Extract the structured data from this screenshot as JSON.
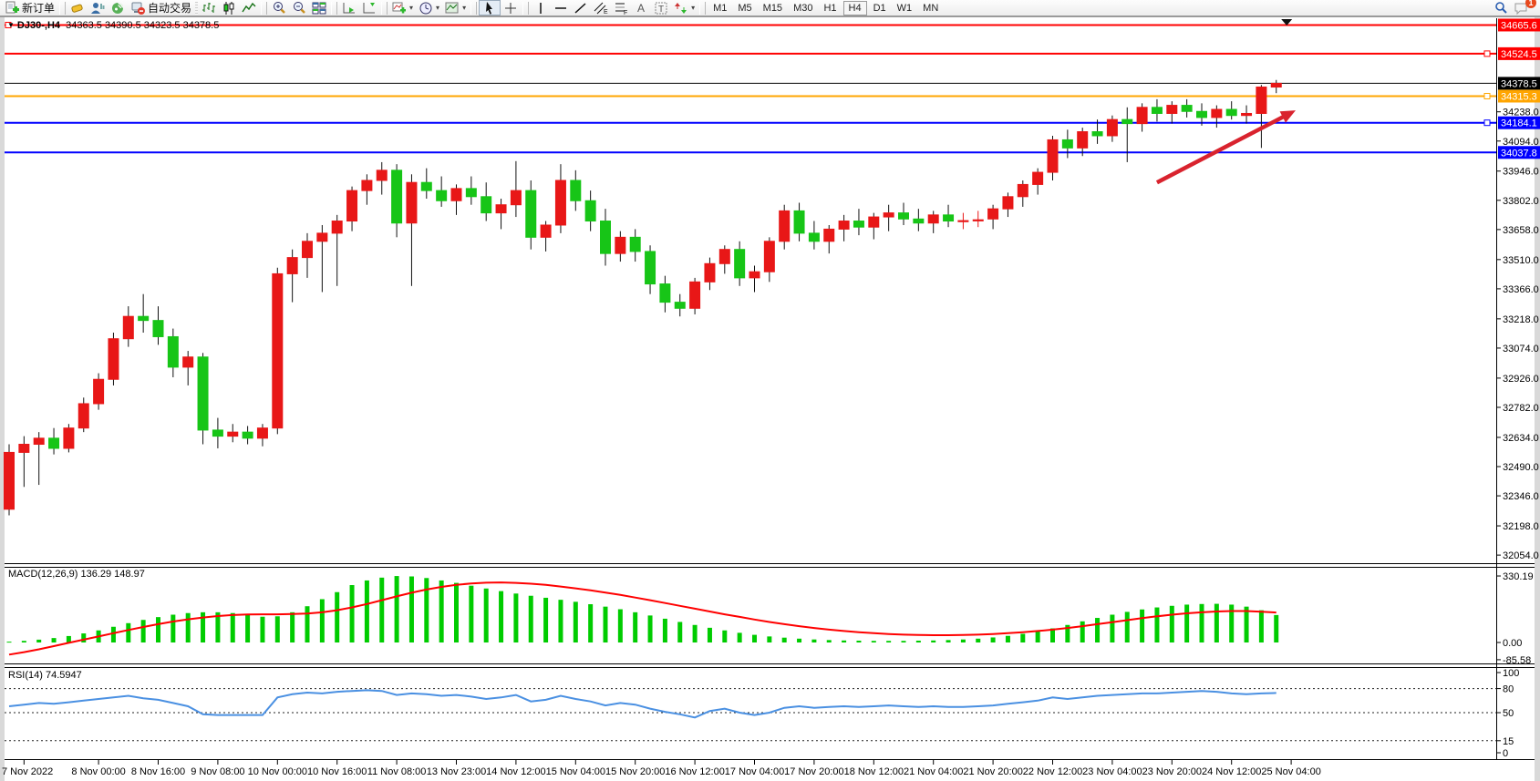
{
  "toolbar": {
    "new_order_label": "新订单",
    "autotrade_label": "自动交易",
    "timeframes": [
      "M1",
      "M5",
      "M15",
      "M30",
      "H1",
      "H4",
      "D1",
      "W1",
      "MN"
    ],
    "active_timeframe": "H4",
    "notification_count": "1"
  },
  "chart_title": {
    "symbol": "DJ30-,H4",
    "ohlc": "34363.5 34390.5 34323.5 34378.5"
  },
  "indicators": {
    "macd_label": "MACD(12,26,9) 136.29 148.97",
    "rsi_label": "RSI(14) 74.5947"
  },
  "colors": {
    "bull": "#e81717",
    "bear": "#17c517",
    "wick": "#111111",
    "macd_hist": "#00cc00",
    "macd_signal": "#ff0000",
    "rsi_line": "#4a90e2",
    "arrow": "#d9232e",
    "current_price_bg": "#000000"
  },
  "chart_data": [
    {
      "type": "candlestick",
      "title": "DJ30-,H4",
      "timeframe": "H4",
      "current_price": 34378.5,
      "ylim": [
        32000,
        34700
      ],
      "y_ticks": [
        "34238.0",
        "34094.0",
        "33946.0",
        "33802.0",
        "33658.0",
        "33510.0",
        "33366.0",
        "33218.0",
        "33074.0",
        "32926.0",
        "32782.0",
        "32634.0",
        "32490.0",
        "32346.0",
        "32198.0",
        "32054.0"
      ],
      "x_labels": [
        "7 Nov 2022",
        "8 Nov 00:00",
        "8 Nov 16:00",
        "9 Nov 08:00",
        "10 Nov 00:00",
        "10 Nov 16:00",
        "11 Nov 08:00",
        "13 Nov 23:00",
        "14 Nov 12:00",
        "15 Nov 04:00",
        "15 Nov 20:00",
        "16 Nov 12:00",
        "17 Nov 04:00",
        "17 Nov 20:00",
        "18 Nov 12:00",
        "21 Nov 04:00",
        "21 Nov 20:00",
        "22 Nov 12:00",
        "23 Nov 04:00",
        "23 Nov 20:00",
        "24 Nov 12:00",
        "25 Nov 04:00"
      ],
      "x_label_indices": [
        1,
        6,
        10,
        14,
        18,
        22,
        26,
        30,
        34,
        38,
        42,
        46,
        50,
        54,
        58,
        62,
        66,
        70,
        74,
        78,
        82,
        86
      ],
      "levels": [
        {
          "price": 34665.6,
          "color": "#ff0000",
          "marker": "left"
        },
        {
          "price": 34524.5,
          "color": "#ff0000",
          "marker": "right"
        },
        {
          "price": 34315.3,
          "color": "#ffa500",
          "marker": "right"
        },
        {
          "price": 34184.1,
          "color": "#0000ff",
          "marker": "right"
        },
        {
          "price": 34037.8,
          "color": "#0000ff",
          "marker": "none"
        }
      ],
      "ohlc": [
        [
          32280,
          32600,
          32250,
          32560
        ],
        [
          32560,
          32640,
          32390,
          32600
        ],
        [
          32600,
          32660,
          32400,
          32630
        ],
        [
          32630,
          32680,
          32550,
          32580
        ],
        [
          32580,
          32700,
          32560,
          32680
        ],
        [
          32680,
          32830,
          32660,
          32800
        ],
        [
          32800,
          32950,
          32770,
          32920
        ],
        [
          32920,
          33150,
          32890,
          33120
        ],
        [
          33120,
          33280,
          33080,
          33230
        ],
        [
          33230,
          33340,
          33150,
          33210
        ],
        [
          33210,
          33280,
          33090,
          33130
        ],
        [
          33130,
          33170,
          32930,
          32980
        ],
        [
          32980,
          33060,
          32890,
          33030
        ],
        [
          33030,
          33050,
          32600,
          32670
        ],
        [
          32670,
          32730,
          32580,
          32640
        ],
        [
          32640,
          32700,
          32610,
          32660
        ],
        [
          32660,
          32690,
          32600,
          32630
        ],
        [
          32630,
          32700,
          32590,
          32680
        ],
        [
          32680,
          33470,
          32650,
          33440
        ],
        [
          33440,
          33560,
          33300,
          33520
        ],
        [
          33520,
          33640,
          33420,
          33600
        ],
        [
          33600,
          33680,
          33350,
          33640
        ],
        [
          33640,
          33730,
          33380,
          33700
        ],
        [
          33700,
          33870,
          33650,
          33850
        ],
        [
          33850,
          33930,
          33780,
          33900
        ],
        [
          33900,
          33990,
          33830,
          33950
        ],
        [
          33950,
          33980,
          33620,
          33690
        ],
        [
          33690,
          33930,
          33380,
          33890
        ],
        [
          33890,
          33960,
          33810,
          33850
        ],
        [
          33850,
          33920,
          33770,
          33800
        ],
        [
          33800,
          33880,
          33730,
          33860
        ],
        [
          33860,
          33920,
          33780,
          33820
        ],
        [
          33820,
          33890,
          33700,
          33740
        ],
        [
          33740,
          33810,
          33660,
          33780
        ],
        [
          33780,
          33995,
          33720,
          33850
        ],
        [
          33850,
          33900,
          33560,
          33620
        ],
        [
          33620,
          33700,
          33550,
          33680
        ],
        [
          33680,
          33980,
          33640,
          33900
        ],
        [
          33900,
          33950,
          33750,
          33800
        ],
        [
          33800,
          33850,
          33650,
          33700
        ],
        [
          33700,
          33760,
          33480,
          33540
        ],
        [
          33540,
          33650,
          33500,
          33620
        ],
        [
          33620,
          33660,
          33500,
          33550
        ],
        [
          33550,
          33580,
          33340,
          33390
        ],
        [
          33390,
          33430,
          33250,
          33300
        ],
        [
          33300,
          33340,
          33230,
          33270
        ],
        [
          33270,
          33420,
          33240,
          33400
        ],
        [
          33400,
          33520,
          33360,
          33490
        ],
        [
          33490,
          33580,
          33440,
          33560
        ],
        [
          33560,
          33600,
          33380,
          33420
        ],
        [
          33420,
          33480,
          33350,
          33450
        ],
        [
          33450,
          33620,
          33400,
          33600
        ],
        [
          33600,
          33780,
          33560,
          33750
        ],
        [
          33750,
          33790,
          33600,
          33640
        ],
        [
          33640,
          33700,
          33560,
          33600
        ],
        [
          33600,
          33680,
          33540,
          33660
        ],
        [
          33660,
          33730,
          33600,
          33700
        ],
        [
          33700,
          33760,
          33630,
          33670
        ],
        [
          33670,
          33740,
          33610,
          33720
        ],
        [
          33720,
          33780,
          33650,
          33740
        ],
        [
          33740,
          33790,
          33680,
          33710
        ],
        [
          33710,
          33760,
          33650,
          33690
        ],
        [
          33690,
          33750,
          33640,
          33730
        ],
        [
          33730,
          33780,
          33670,
          33700
        ],
        [
          33700,
          33740,
          33660,
          33702
        ],
        [
          33702,
          33750,
          33670,
          33706
        ],
        [
          33710,
          33780,
          33660,
          33760
        ],
        [
          33760,
          33840,
          33720,
          33820
        ],
        [
          33820,
          33900,
          33770,
          33880
        ],
        [
          33880,
          33960,
          33830,
          33940
        ],
        [
          33940,
          34120,
          33900,
          34100
        ],
        [
          34100,
          34150,
          34010,
          34060
        ],
        [
          34060,
          34160,
          34020,
          34140
        ],
        [
          34140,
          34200,
          34080,
          34120
        ],
        [
          34120,
          34220,
          34090,
          34200
        ],
        [
          34200,
          34260,
          33990,
          34180
        ],
        [
          34180,
          34280,
          34140,
          34260
        ],
        [
          34260,
          34300,
          34190,
          34230
        ],
        [
          34230,
          34290,
          34180,
          34270
        ],
        [
          34270,
          34300,
          34210,
          34240
        ],
        [
          34240,
          34280,
          34170,
          34210
        ],
        [
          34210,
          34270,
          34160,
          34250
        ],
        [
          34250,
          34290,
          34200,
          34220
        ],
        [
          34220,
          34270,
          34180,
          34230
        ],
        [
          34230,
          34370,
          34060,
          34360
        ],
        [
          34360,
          34395,
          34330,
          34378.5
        ]
      ],
      "annotation": {
        "type": "arrow",
        "from_index": 77,
        "from_price": 33890,
        "to_index": 86.3,
        "to_price": 34245
      },
      "marker_triangle_index": 85.7
    },
    {
      "type": "bar",
      "name": "MACD(12,26,9)",
      "value_main": 136.29,
      "value_signal": 148.97,
      "y_ticks": [
        "330.19",
        "0.00",
        "-85.58"
      ],
      "ymax": 330.19,
      "ymin": -85.58,
      "values": [
        4,
        8,
        14,
        22,
        32,
        45,
        60,
        78,
        96,
        112,
        126,
        138,
        146,
        150,
        150,
        146,
        138,
        128,
        130,
        150,
        180,
        215,
        250,
        285,
        308,
        322,
        330,
        328,
        320,
        308,
        296,
        282,
        268,
        255,
        243,
        232,
        222,
        212,
        202,
        190,
        178,
        165,
        150,
        134,
        118,
        102,
        87,
        73,
        60,
        48,
        38,
        30,
        24,
        19,
        15,
        12,
        10,
        9,
        8,
        8,
        8,
        9,
        10,
        12,
        15,
        19,
        25,
        33,
        43,
        55,
        70,
        87,
        105,
        122,
        138,
        152,
        164,
        174,
        182,
        188,
        191,
        192,
        188,
        178,
        160,
        136.29
      ],
      "signal": [
        -60,
        -48,
        -34,
        -18,
        -2,
        14,
        30,
        46,
        62,
        77,
        91,
        104,
        115,
        124,
        131,
        136,
        139,
        140,
        140,
        141,
        144,
        150,
        160,
        174,
        191,
        210,
        229,
        247,
        263,
        276,
        286,
        293,
        297,
        298,
        296,
        292,
        286,
        278,
        269,
        259,
        248,
        236,
        223,
        210,
        196,
        182,
        168,
        154,
        140,
        127,
        114,
        102,
        91,
        81,
        72,
        64,
        57,
        51,
        46,
        42,
        39,
        37,
        36,
        36,
        37,
        39,
        42,
        46,
        51,
        57,
        64,
        72,
        81,
        91,
        101,
        111,
        121,
        130,
        138,
        145,
        150,
        154,
        156,
        156,
        153,
        148.97
      ]
    },
    {
      "type": "line",
      "name": "RSI(14)",
      "value": 74.5947,
      "y_ticks": [
        "100",
        "80",
        "50",
        "15",
        "0"
      ],
      "levels_dashed": [
        80,
        50,
        15
      ],
      "ymax": 100,
      "ymin": 0,
      "values": [
        58,
        60,
        62,
        61,
        63,
        65,
        67,
        69,
        71,
        68,
        66,
        62,
        58,
        48,
        47,
        47,
        47,
        47,
        69,
        73,
        75,
        74,
        76,
        77,
        78,
        77,
        72,
        74,
        73,
        71,
        72,
        70,
        67,
        69,
        72,
        64,
        66,
        71,
        67,
        64,
        59,
        62,
        60,
        55,
        51,
        48,
        44,
        52,
        55,
        50,
        47,
        50,
        56,
        58,
        56,
        57,
        58,
        57,
        58,
        59,
        58,
        57,
        58,
        57,
        57,
        58,
        59,
        61,
        63,
        65,
        69,
        67,
        69,
        71,
        72,
        73,
        74,
        74,
        75,
        76,
        77,
        76,
        74,
        73,
        74,
        74.5947
      ]
    }
  ]
}
